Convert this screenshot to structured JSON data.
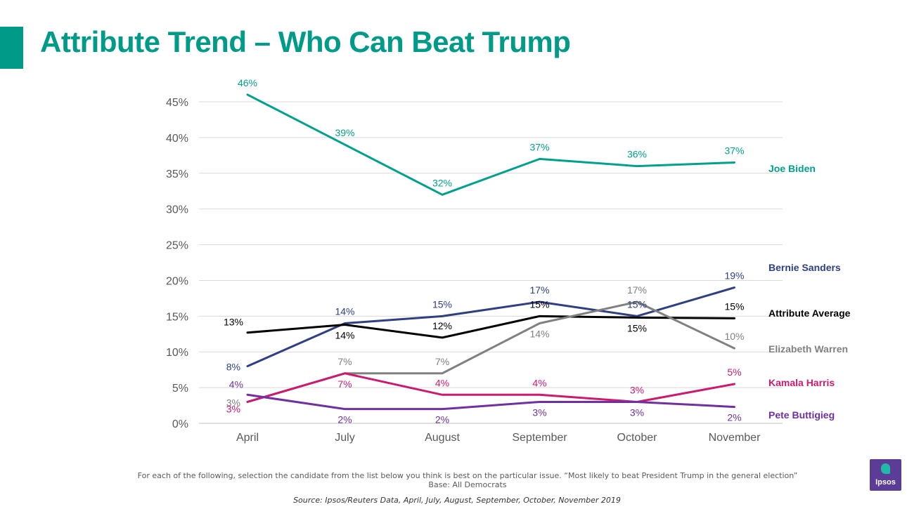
{
  "slide": {
    "title": "Attribute Trend – Who Can Beat Trump",
    "footnote_line1": "For each of the following, selection the candidate from the list below you think is best on the particular issue. “Most likely to beat President Trump in the general election”",
    "footnote_line2": "Base: All Democrats",
    "source": "Source: Ipsos/Reuters Data, April, July, August, September, October, November 2019",
    "logo_text": "Ipsos",
    "accent_color": "#009a88"
  },
  "chart_data": {
    "type": "line",
    "title": "",
    "xlabel": "",
    "ylabel": "",
    "categories": [
      "April",
      "July",
      "August",
      "September",
      "October",
      "November"
    ],
    "ylim": [
      0,
      45
    ],
    "yticks": [
      0,
      5,
      10,
      15,
      20,
      25,
      30,
      35,
      40,
      45
    ],
    "ytick_labels": [
      "0%",
      "5%",
      "10%",
      "15%",
      "20%",
      "25%",
      "30%",
      "35%",
      "40%",
      "45%"
    ],
    "grid": true,
    "legend": "right, labels at line ends",
    "series": [
      {
        "name": "Joe Biden",
        "color": "#00a08e",
        "values": [
          46,
          39,
          32,
          37,
          36,
          36.5
        ],
        "labels": [
          "46%",
          "39%",
          "32%",
          "37%",
          "36%",
          "37%"
        ],
        "label_pos": [
          "above",
          "above",
          "above",
          "above",
          "above",
          "above"
        ]
      },
      {
        "name": "Bernie Sanders",
        "color": "#2e3f84",
        "values": [
          8,
          14,
          15,
          17,
          15,
          19
        ],
        "labels": [
          "8%",
          "14%",
          "15%",
          "17%",
          "15%",
          "19%"
        ],
        "label_pos": [
          "left",
          "above",
          "above",
          "above",
          "above",
          "above"
        ]
      },
      {
        "name": "Attribute Average",
        "color": "#000000",
        "values": [
          12.7,
          13.8,
          12,
          15,
          14.8,
          14.7
        ],
        "labels": [
          "13%",
          "14%",
          "12%",
          "15%",
          "15%",
          "15%"
        ],
        "label_pos": [
          "above-left",
          "below",
          "above",
          "above",
          "below",
          "above"
        ]
      },
      {
        "name": "Elizabeth Warren",
        "color": "#808080",
        "values": [
          3,
          7,
          7,
          14,
          17,
          10.5
        ],
        "labels": [
          "3%",
          "7%",
          "7%",
          "14%",
          "17%",
          "10%"
        ],
        "label_pos": [
          "left",
          "above",
          "above",
          "below",
          "above",
          "above"
        ]
      },
      {
        "name": "Kamala Harris",
        "color": "#cc1a6f",
        "values": [
          3,
          7,
          4,
          4,
          3,
          5.5
        ],
        "labels": [
          "3%",
          "7%",
          "4%",
          "4%",
          "3%",
          "5%"
        ],
        "label_pos": [
          "below-left",
          "below",
          "above",
          "above",
          "above",
          "above"
        ]
      },
      {
        "name": "Pete Buttigieg",
        "color": "#7030a0",
        "values": [
          4,
          2,
          2,
          3,
          3,
          2.3
        ],
        "labels": [
          "4%",
          "2%",
          "2%",
          "3%",
          "3%",
          "2%"
        ],
        "label_pos": [
          "above-left",
          "below",
          "below",
          "below",
          "below",
          "below"
        ]
      }
    ]
  }
}
